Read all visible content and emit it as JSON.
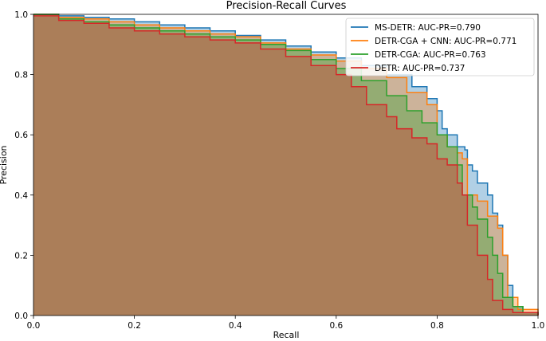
{
  "chart_data": {
    "type": "area",
    "title": "Precision-Recall Curves",
    "xlabel": "Recall",
    "ylabel": "Precision",
    "xlim": [
      0.0,
      1.0
    ],
    "ylim": [
      0.0,
      1.0
    ],
    "xticks": [
      "0.0",
      "0.2",
      "0.4",
      "0.6",
      "0.8",
      "1.0"
    ],
    "yticks": [
      "0.0",
      "0.2",
      "0.4",
      "0.6",
      "0.8",
      "1.0"
    ],
    "grid": false,
    "legend_position": "top-right",
    "series": [
      {
        "name": "MS-DETR: AUC-PR=0.790",
        "color": "#1f77b4",
        "points": [
          [
            0.0,
            1.0
          ],
          [
            0.05,
            0.995
          ],
          [
            0.1,
            0.99
          ],
          [
            0.15,
            0.985
          ],
          [
            0.2,
            0.975
          ],
          [
            0.25,
            0.965
          ],
          [
            0.3,
            0.955
          ],
          [
            0.35,
            0.945
          ],
          [
            0.4,
            0.93
          ],
          [
            0.45,
            0.915
          ],
          [
            0.5,
            0.895
          ],
          [
            0.55,
            0.875
          ],
          [
            0.6,
            0.855
          ],
          [
            0.65,
            0.83
          ],
          [
            0.7,
            0.8
          ],
          [
            0.75,
            0.76
          ],
          [
            0.78,
            0.72
          ],
          [
            0.8,
            0.68
          ],
          [
            0.81,
            0.62
          ],
          [
            0.82,
            0.6
          ],
          [
            0.84,
            0.56
          ],
          [
            0.855,
            0.55
          ],
          [
            0.86,
            0.5
          ],
          [
            0.87,
            0.48
          ],
          [
            0.88,
            0.44
          ],
          [
            0.9,
            0.4
          ],
          [
            0.91,
            0.34
          ],
          [
            0.92,
            0.3
          ],
          [
            0.93,
            0.2
          ],
          [
            0.94,
            0.1
          ],
          [
            0.95,
            0.03
          ],
          [
            0.97,
            0.01
          ],
          [
            1.0,
            0.0
          ]
        ]
      },
      {
        "name": "DETR-CGA + CNN: AUC-PR=0.771",
        "color": "#ff7f0e",
        "points": [
          [
            0.0,
            1.0
          ],
          [
            0.05,
            0.99
          ],
          [
            0.1,
            0.985
          ],
          [
            0.15,
            0.975
          ],
          [
            0.2,
            0.965
          ],
          [
            0.25,
            0.955
          ],
          [
            0.3,
            0.945
          ],
          [
            0.35,
            0.935
          ],
          [
            0.4,
            0.925
          ],
          [
            0.45,
            0.905
          ],
          [
            0.5,
            0.885
          ],
          [
            0.55,
            0.865
          ],
          [
            0.6,
            0.845
          ],
          [
            0.65,
            0.82
          ],
          [
            0.7,
            0.79
          ],
          [
            0.74,
            0.74
          ],
          [
            0.78,
            0.7
          ],
          [
            0.8,
            0.6
          ],
          [
            0.82,
            0.56
          ],
          [
            0.84,
            0.54
          ],
          [
            0.85,
            0.52
          ],
          [
            0.86,
            0.4
          ],
          [
            0.88,
            0.38
          ],
          [
            0.9,
            0.33
          ],
          [
            0.92,
            0.29
          ],
          [
            0.93,
            0.2
          ],
          [
            0.94,
            0.06
          ],
          [
            0.96,
            0.02
          ],
          [
            1.0,
            0.0
          ]
        ]
      },
      {
        "name": "DETR-CGA: AUC-PR=0.763",
        "color": "#2ca02c",
        "points": [
          [
            0.0,
            1.0
          ],
          [
            0.05,
            0.985
          ],
          [
            0.1,
            0.975
          ],
          [
            0.15,
            0.965
          ],
          [
            0.2,
            0.955
          ],
          [
            0.25,
            0.945
          ],
          [
            0.3,
            0.935
          ],
          [
            0.35,
            0.925
          ],
          [
            0.4,
            0.915
          ],
          [
            0.45,
            0.9
          ],
          [
            0.5,
            0.88
          ],
          [
            0.55,
            0.85
          ],
          [
            0.6,
            0.82
          ],
          [
            0.65,
            0.78
          ],
          [
            0.7,
            0.73
          ],
          [
            0.74,
            0.68
          ],
          [
            0.77,
            0.64
          ],
          [
            0.8,
            0.6
          ],
          [
            0.82,
            0.56
          ],
          [
            0.84,
            0.5
          ],
          [
            0.85,
            0.4
          ],
          [
            0.87,
            0.36
          ],
          [
            0.88,
            0.32
          ],
          [
            0.9,
            0.26
          ],
          [
            0.91,
            0.2
          ],
          [
            0.92,
            0.14
          ],
          [
            0.93,
            0.06
          ],
          [
            0.95,
            0.03
          ],
          [
            0.97,
            0.01
          ],
          [
            1.0,
            0.0
          ]
        ]
      },
      {
        "name": "DETR: AUC-PR=0.737",
        "color": "#d62728",
        "points": [
          [
            0.0,
            0.995
          ],
          [
            0.05,
            0.98
          ],
          [
            0.1,
            0.97
          ],
          [
            0.15,
            0.955
          ],
          [
            0.2,
            0.945
          ],
          [
            0.25,
            0.935
          ],
          [
            0.3,
            0.925
          ],
          [
            0.35,
            0.915
          ],
          [
            0.4,
            0.905
          ],
          [
            0.45,
            0.885
          ],
          [
            0.5,
            0.86
          ],
          [
            0.55,
            0.83
          ],
          [
            0.6,
            0.8
          ],
          [
            0.63,
            0.76
          ],
          [
            0.66,
            0.7
          ],
          [
            0.7,
            0.66
          ],
          [
            0.72,
            0.62
          ],
          [
            0.75,
            0.59
          ],
          [
            0.78,
            0.57
          ],
          [
            0.8,
            0.52
          ],
          [
            0.82,
            0.5
          ],
          [
            0.84,
            0.44
          ],
          [
            0.85,
            0.4
          ],
          [
            0.86,
            0.3
          ],
          [
            0.88,
            0.2
          ],
          [
            0.9,
            0.12
          ],
          [
            0.91,
            0.05
          ],
          [
            0.93,
            0.02
          ],
          [
            0.95,
            0.01
          ],
          [
            1.0,
            0.0
          ]
        ]
      }
    ]
  }
}
